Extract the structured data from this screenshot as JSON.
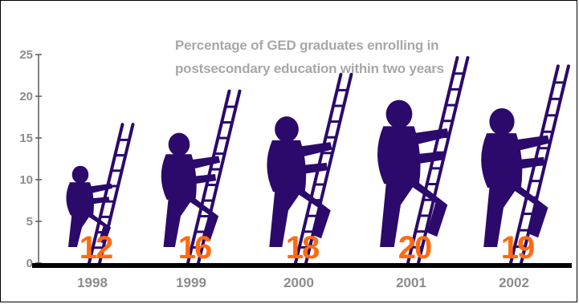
{
  "chart_data": {
    "type": "bar",
    "title_lines": [
      "Percentage of GED graduates enrolling in",
      "postsecondary education within two years"
    ],
    "xlabel": "",
    "ylabel": "",
    "categories": [
      "1998",
      "1999",
      "2000",
      "2001",
      "2002"
    ],
    "values": [
      12,
      16,
      18,
      20,
      19
    ],
    "ylim": [
      0,
      25
    ],
    "yticks": [
      0,
      5,
      10,
      15,
      20,
      25
    ],
    "grid": false,
    "legend": "none",
    "mark_style": "climber-on-ladder pictograph",
    "colors": {
      "mark": "#2b0a6b",
      "value_label": "#ff6a10",
      "title": "#a8a8a8",
      "axis_text": "#8c8c8c",
      "axis_line": "#5a5a5a",
      "baseline": "#000000"
    }
  }
}
